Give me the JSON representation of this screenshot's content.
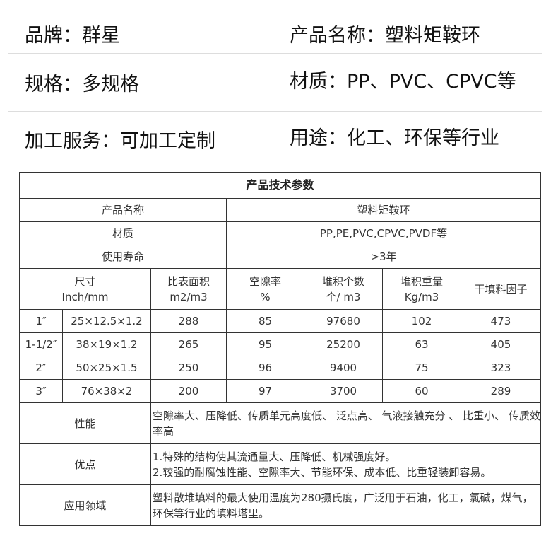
{
  "info": [
    {
      "label": "品牌：",
      "value": "群星"
    },
    {
      "label": "产品名称：",
      "value": "塑料矩鞍环"
    },
    {
      "label": "规格：",
      "value": "多规格"
    },
    {
      "label": "材质：",
      "value": "PP、PVC、CPVC等"
    },
    {
      "label": "加工服务：",
      "value": "可加工定制"
    },
    {
      "label": "用途：",
      "value": "化工、环保等行业"
    }
  ],
  "table": {
    "title": "产品技术参数",
    "kv": [
      {
        "k": "产品名称",
        "v": "塑料矩鞍环"
      },
      {
        "k": "材质",
        "v": "PP,PE,PVC,CPVC,PVDF等"
      },
      {
        "k": "使用寿命",
        "v": ">3年"
      }
    ],
    "headers": [
      {
        "a": "尺寸",
        "b": "Inch/mm"
      },
      {
        "a": "比表面积",
        "b": "m2/m3"
      },
      {
        "a": "空隙率",
        "b": "%"
      },
      {
        "a": "堆积个数",
        "b": "个/ m3"
      },
      {
        "a": "堆积重量",
        "b": "Kg/m3"
      },
      {
        "a": "干填料因子",
        "b": ""
      }
    ],
    "rows": [
      [
        "1″",
        "25×12.5×1.2",
        "288",
        "85",
        "97680",
        "102",
        "473"
      ],
      [
        "1-1/2″",
        "38×19×1.2",
        "265",
        "95",
        "25200",
        "63",
        "405"
      ],
      [
        "2″",
        "50×25×1.5",
        "250",
        "96",
        "9400",
        "75",
        "323"
      ],
      [
        "3″",
        "76×38×2",
        "200",
        "97",
        "3700",
        "60",
        "289"
      ]
    ],
    "notes": [
      {
        "k": "性能",
        "v": [
          "空隙率大、压降低、传质单元高度低、 泛点高、 气液接触充分 、 比重小、 传质效率高"
        ]
      },
      {
        "k": "优点",
        "v": [
          "1.特殊的结构使其流通量大、压降低、机械强度好。",
          "2.较强的耐腐蚀性能、空隙率大、节能环保、成本低、比重轻装卸容易。"
        ]
      },
      {
        "k": "应用领域",
        "v": [
          "塑料散堆填料的最大使用温度为280摄氏度，广泛用于石油，化工，氯碱，煤气，环保等行业的填料塔里。"
        ]
      }
    ]
  }
}
